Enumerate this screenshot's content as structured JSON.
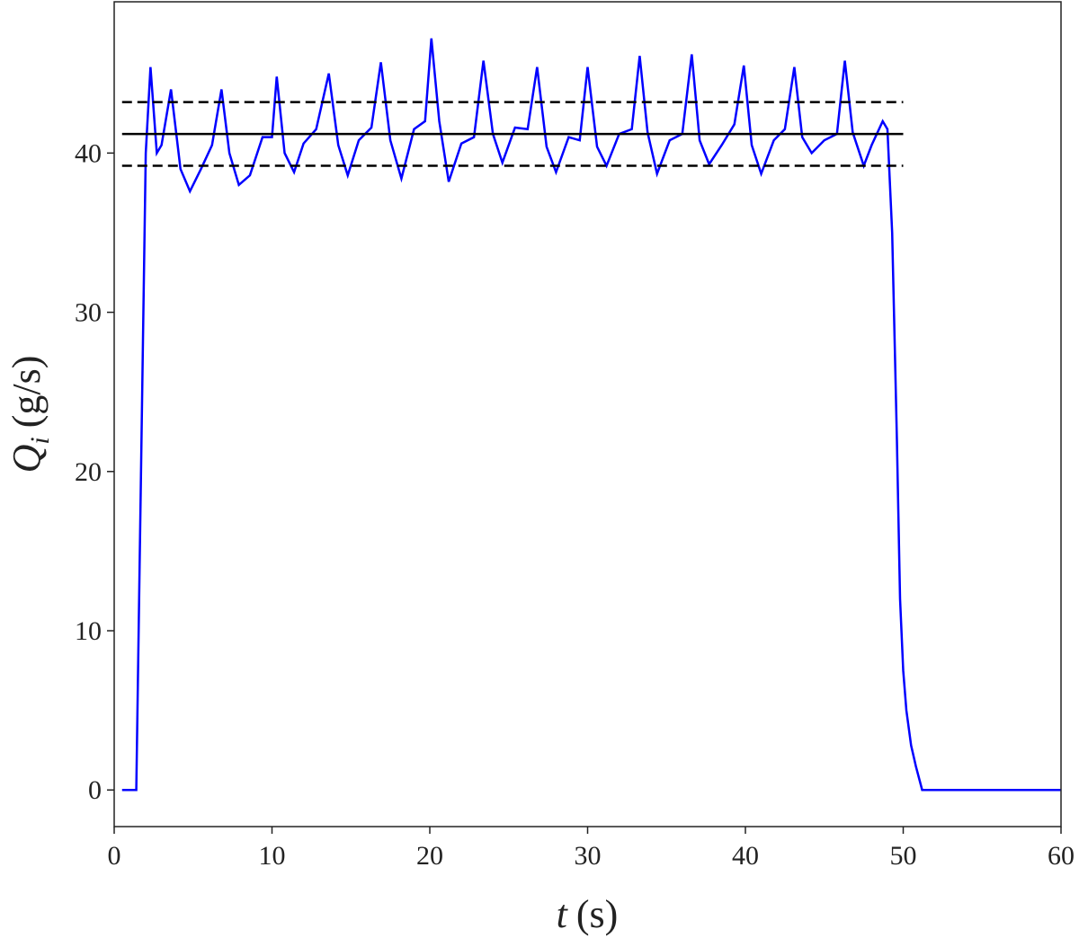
{
  "chart_data": {
    "type": "line",
    "xlabel": {
      "symbol": "t",
      "unit": "(s)"
    },
    "ylabel": {
      "symbol": "Q",
      "subscript": "i",
      "unit": "(g/s)"
    },
    "xlim": [
      0,
      60
    ],
    "xticks": [
      0,
      10,
      20,
      30,
      40,
      50,
      60
    ],
    "ylim": [
      -2.3,
      49.5
    ],
    "yticks": [
      0,
      10,
      20,
      30,
      40
    ],
    "grid": false,
    "series": [
      {
        "color": "#0000ff",
        "dash": "solid",
        "x": [
          0.5,
          1.4,
          2.0,
          2.3,
          2.7,
          3.0,
          3.6,
          4.2,
          4.8,
          5.5,
          6.2,
          6.8,
          7.3,
          7.9,
          8.6,
          9.4,
          10.0,
          10.3,
          10.8,
          11.4,
          12.0,
          12.8,
          13.6,
          14.2,
          14.8,
          15.5,
          16.3,
          16.9,
          17.5,
          18.2,
          19.0,
          19.7,
          20.1,
          20.6,
          21.2,
          22.0,
          22.8,
          23.4,
          24.0,
          24.6,
          25.4,
          26.2,
          26.8,
          27.4,
          28.0,
          28.8,
          29.5,
          30.0,
          30.6,
          31.2,
          32.0,
          32.8,
          33.3,
          33.8,
          34.4,
          35.2,
          36.0,
          36.6,
          37.1,
          37.7,
          38.5,
          39.3,
          39.9,
          40.4,
          41.0,
          41.8,
          42.5,
          43.1,
          43.6,
          44.2,
          45.0,
          45.8,
          46.3,
          46.8,
          47.5,
          48.0,
          48.7,
          49.0,
          49.3,
          49.6,
          49.8,
          50.0,
          50.2,
          50.5,
          50.8,
          51.2,
          60
        ],
        "values": [
          0,
          0,
          40,
          45.4,
          40,
          40.5,
          44,
          39,
          37.6,
          39,
          40.5,
          44,
          40,
          38,
          38.6,
          41,
          41,
          44.8,
          40,
          38.8,
          40.6,
          41.5,
          45,
          40.5,
          38.6,
          40.8,
          41.6,
          45.7,
          40.8,
          38.4,
          41.5,
          42,
          47.2,
          42,
          38.2,
          40.6,
          41,
          45.8,
          41.2,
          39.4,
          41.6,
          41.5,
          45.4,
          40.4,
          38.8,
          41,
          40.8,
          45.4,
          40.4,
          39.2,
          41.2,
          41.5,
          46.1,
          41.3,
          38.7,
          40.8,
          41.2,
          46.2,
          40.8,
          39.3,
          40.5,
          41.8,
          45.5,
          40.5,
          38.7,
          40.8,
          41.5,
          45.4,
          41,
          40,
          40.8,
          41.2,
          45.8,
          41.3,
          39.2,
          40.5,
          42,
          41.5,
          35,
          22,
          12,
          7.5,
          5,
          2.8,
          1.5,
          0,
          0
        ]
      },
      {
        "color": "#000000",
        "dash": "solid",
        "x": [
          0.5,
          50
        ],
        "values": [
          41.2,
          41.2
        ]
      },
      {
        "color": "#000000",
        "dash": "dashed",
        "x": [
          0.5,
          50
        ],
        "values": [
          43.2,
          43.2
        ]
      },
      {
        "color": "#000000",
        "dash": "dashed",
        "x": [
          0.5,
          50
        ],
        "values": [
          39.2,
          39.2
        ]
      }
    ]
  }
}
